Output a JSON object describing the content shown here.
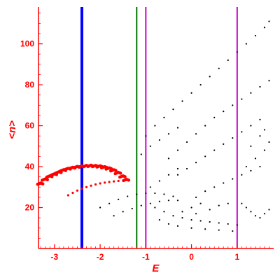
{
  "chart_data": {
    "type": "scatter",
    "xlabel": "E",
    "ylabel": "<n>",
    "xlim": [
      -3.35,
      1.8
    ],
    "ylim": [
      0,
      118
    ],
    "x_ticks": [
      -3,
      -2,
      -1,
      0,
      1
    ],
    "x_tick_labels": [
      "-3",
      "-2",
      "-1",
      "0",
      "1"
    ],
    "y_ticks": [
      20,
      40,
      60,
      80,
      100
    ],
    "y_tick_labels": [
      "20",
      "40",
      "60",
      "80",
      "100"
    ],
    "grid": false,
    "colors": {
      "axis": "#ff0000",
      "highlight": "#ff0000",
      "points": "#000000",
      "line_blue": "#0000ff",
      "line_green": "#007700",
      "line_magenta": "#cc00cc"
    },
    "vertical_lines": [
      {
        "x": -2.4,
        "color": "#0000ff"
      },
      {
        "x": -1.2,
        "color": "#007700"
      },
      {
        "x": -1.0,
        "color": "#cc00cc"
      },
      {
        "x": 1.0,
        "color": "#cc00cc"
      }
    ],
    "series": [
      {
        "kind": "red-band",
        "points": [
          [
            -3.3,
            32
          ],
          [
            -3.2,
            34
          ],
          [
            -3.1,
            35.5
          ],
          [
            -3.0,
            36.5
          ],
          [
            -2.9,
            37.5
          ],
          [
            -2.8,
            38.5
          ],
          [
            -2.7,
            39.2
          ],
          [
            -2.6,
            39.7
          ],
          [
            -2.5,
            40.1
          ],
          [
            -2.4,
            40.4
          ],
          [
            -2.3,
            40.6
          ],
          [
            -2.2,
            40.7
          ],
          [
            -2.1,
            40.6
          ],
          [
            -2.0,
            40.4
          ],
          [
            -1.9,
            40.0
          ],
          [
            -1.8,
            39.4
          ],
          [
            -1.7,
            38.5
          ],
          [
            -1.6,
            37.2
          ],
          [
            -1.5,
            35.5
          ],
          [
            -1.42,
            33.8
          ]
        ]
      },
      {
        "kind": "red-curve",
        "points": [
          [
            -2.7,
            26
          ],
          [
            -2.6,
            27.2
          ],
          [
            -2.5,
            28.3
          ],
          [
            -2.4,
            29.2
          ],
          [
            -2.3,
            30.0
          ],
          [
            -2.2,
            30.7
          ],
          [
            -2.1,
            31.3
          ],
          [
            -2.0,
            31.8
          ],
          [
            -1.9,
            32.2
          ],
          [
            -1.8,
            32.5
          ],
          [
            -1.7,
            32.8
          ],
          [
            -1.6,
            33.0
          ]
        ]
      },
      {
        "kind": "black-branches",
        "points": [
          [
            -1.0,
            55
          ],
          [
            -0.8,
            60
          ],
          [
            -0.6,
            64
          ],
          [
            -0.4,
            68
          ],
          [
            -0.2,
            72
          ],
          [
            0.0,
            76
          ],
          [
            0.2,
            80
          ],
          [
            0.4,
            84
          ],
          [
            0.6,
            88
          ],
          [
            0.8,
            92
          ],
          [
            1.0,
            96
          ],
          [
            1.2,
            100
          ],
          [
            1.4,
            104
          ],
          [
            1.6,
            108
          ],
          [
            1.7,
            111
          ],
          [
            -0.5,
            44
          ],
          [
            -0.3,
            48
          ],
          [
            -0.1,
            52
          ],
          [
            0.1,
            56
          ],
          [
            0.3,
            60
          ],
          [
            0.5,
            64
          ],
          [
            0.7,
            67
          ],
          [
            0.9,
            70
          ],
          [
            1.1,
            73
          ],
          [
            1.3,
            76
          ],
          [
            1.5,
            79
          ],
          [
            1.7,
            82
          ],
          [
            -0.3,
            36
          ],
          [
            -0.1,
            39
          ],
          [
            0.1,
            42
          ],
          [
            0.3,
            45
          ],
          [
            0.5,
            48
          ],
          [
            0.7,
            51
          ],
          [
            0.9,
            54
          ],
          [
            1.1,
            57
          ],
          [
            1.3,
            60
          ],
          [
            1.5,
            63
          ],
          [
            -1.1,
            46
          ],
          [
            -0.9,
            50
          ],
          [
            -0.7,
            53
          ],
          [
            -0.5,
            56
          ],
          [
            -0.3,
            59
          ],
          [
            -2.0,
            20
          ],
          [
            -1.8,
            22
          ],
          [
            -1.6,
            24
          ],
          [
            -1.4,
            25.5
          ],
          [
            -1.2,
            26.5
          ],
          [
            -1.0,
            27
          ],
          [
            -0.8,
            27
          ],
          [
            -0.6,
            26.5
          ],
          [
            -0.4,
            25.5
          ],
          [
            -1.7,
            16
          ],
          [
            -1.5,
            18
          ],
          [
            -1.3,
            19.5
          ],
          [
            -1.1,
            21
          ],
          [
            -0.9,
            22
          ],
          [
            -0.7,
            23
          ],
          [
            -0.5,
            23.5
          ],
          [
            -0.3,
            23.5
          ],
          [
            -0.8,
            20
          ],
          [
            -0.6,
            18
          ],
          [
            -0.4,
            16
          ],
          [
            -0.2,
            15
          ],
          [
            0.0,
            14
          ],
          [
            0.2,
            13.5
          ],
          [
            0.4,
            13
          ],
          [
            0.6,
            12.5
          ],
          [
            0.8,
            12
          ],
          [
            1.0,
            11.5
          ],
          [
            -0.7,
            14
          ],
          [
            -0.5,
            12
          ],
          [
            -0.3,
            11
          ],
          [
            0.0,
            10
          ],
          [
            0.3,
            9.5
          ],
          [
            0.6,
            9
          ],
          [
            0.9,
            8.5
          ],
          [
            0.1,
            25
          ],
          [
            0.3,
            28
          ],
          [
            0.5,
            30
          ],
          [
            0.7,
            32
          ],
          [
            0.9,
            34
          ],
          [
            1.1,
            36
          ],
          [
            1.3,
            38
          ],
          [
            1.5,
            40
          ],
          [
            1.1,
            22
          ],
          [
            1.2,
            20
          ],
          [
            1.3,
            18
          ],
          [
            1.4,
            16
          ],
          [
            1.5,
            15
          ],
          [
            1.6,
            17
          ],
          [
            1.7,
            19
          ],
          [
            -0.2,
            18
          ],
          [
            0.1,
            17
          ],
          [
            0.4,
            19
          ],
          [
            0.6,
            21
          ],
          [
            0.8,
            22
          ],
          [
            0.0,
            20
          ],
          [
            0.2,
            22
          ],
          [
            -0.9,
            30
          ],
          [
            -0.7,
            33
          ],
          [
            -0.5,
            36
          ],
          [
            -0.3,
            39
          ],
          [
            1.2,
            40
          ],
          [
            1.4,
            44
          ],
          [
            1.6,
            48
          ],
          [
            1.7,
            52
          ],
          [
            1.3,
            50
          ],
          [
            1.5,
            55
          ],
          [
            1.6,
            58
          ]
        ]
      }
    ]
  }
}
